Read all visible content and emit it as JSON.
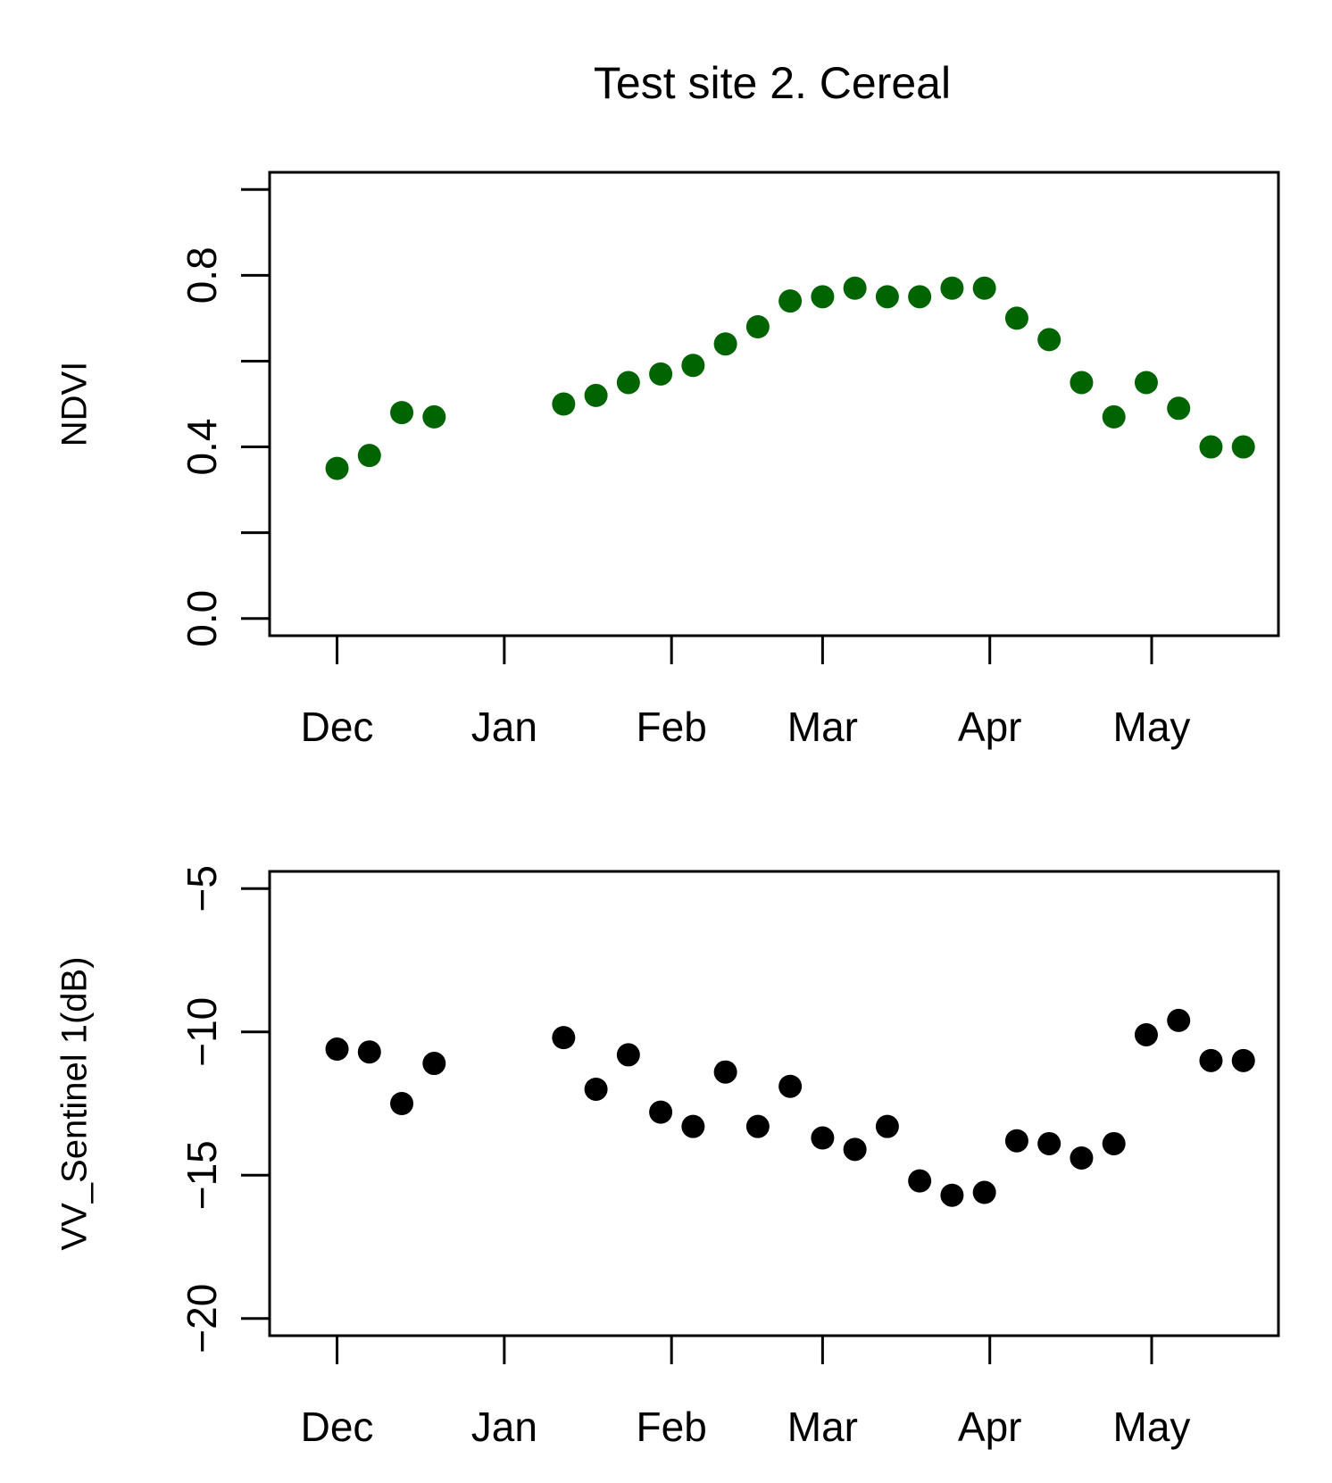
{
  "title": "Test site 2. Cereal",
  "chart_data": [
    {
      "type": "scatter",
      "ylabel": "NDVI",
      "xlabel": "",
      "ylim": [
        -0.04,
        1.04
      ],
      "yticks": [
        0.0,
        0.2,
        0.4,
        0.6,
        0.8,
        1.0
      ],
      "ytick_labels": [
        {
          "value": 0.0,
          "label": "0.0"
        },
        {
          "value": 0.4,
          "label": "0.4"
        },
        {
          "value": 0.8,
          "label": "0.8"
        }
      ],
      "xlim": [
        -12.5,
        174.5
      ],
      "xticks": [
        {
          "day": 0,
          "label": "Dec"
        },
        {
          "day": 31,
          "label": "Jan"
        },
        {
          "day": 62,
          "label": "Feb"
        },
        {
          "day": 90,
          "label": "Mar"
        },
        {
          "day": 121,
          "label": "Apr"
        },
        {
          "day": 151,
          "label": "May"
        }
      ],
      "color": "#006400",
      "series": [
        {
          "name": "NDVI",
          "points": [
            {
              "day": 0,
              "value": 0.35
            },
            {
              "day": 6,
              "value": 0.38
            },
            {
              "day": 12,
              "value": 0.48
            },
            {
              "day": 18,
              "value": 0.47
            },
            {
              "day": 42,
              "value": 0.5
            },
            {
              "day": 48,
              "value": 0.52
            },
            {
              "day": 54,
              "value": 0.55
            },
            {
              "day": 60,
              "value": 0.57
            },
            {
              "day": 66,
              "value": 0.59
            },
            {
              "day": 72,
              "value": 0.64
            },
            {
              "day": 78,
              "value": 0.68
            },
            {
              "day": 84,
              "value": 0.74
            },
            {
              "day": 90,
              "value": 0.75
            },
            {
              "day": 96,
              "value": 0.77
            },
            {
              "day": 102,
              "value": 0.75
            },
            {
              "day": 108,
              "value": 0.75
            },
            {
              "day": 114,
              "value": 0.77
            },
            {
              "day": 120,
              "value": 0.77
            },
            {
              "day": 126,
              "value": 0.7
            },
            {
              "day": 132,
              "value": 0.65
            },
            {
              "day": 138,
              "value": 0.55
            },
            {
              "day": 144,
              "value": 0.47
            },
            {
              "day": 150,
              "value": 0.55
            },
            {
              "day": 156,
              "value": 0.49
            },
            {
              "day": 162,
              "value": 0.4
            },
            {
              "day": 168,
              "value": 0.4
            }
          ]
        }
      ]
    },
    {
      "type": "scatter",
      "ylabel": "VV_Sentinel 1(dB)",
      "xlabel": "",
      "ylim": [
        -20.6,
        -4.4
      ],
      "yticks": [
        -20,
        -15,
        -10,
        -5
      ],
      "ytick_labels": [
        {
          "value": -20,
          "label": "−20"
        },
        {
          "value": -15,
          "label": "−15"
        },
        {
          "value": -10,
          "label": "−10"
        },
        {
          "value": -5,
          "label": "−5"
        }
      ],
      "xlim": [
        -12.5,
        174.5
      ],
      "xticks": [
        {
          "day": 0,
          "label": "Dec"
        },
        {
          "day": 31,
          "label": "Jan"
        },
        {
          "day": 62,
          "label": "Feb"
        },
        {
          "day": 90,
          "label": "Mar"
        },
        {
          "day": 121,
          "label": "Apr"
        },
        {
          "day": 151,
          "label": "May"
        }
      ],
      "color": "#000000",
      "series": [
        {
          "name": "VV",
          "points": [
            {
              "day": 0,
              "value": -10.6
            },
            {
              "day": 6,
              "value": -10.7
            },
            {
              "day": 12,
              "value": -12.5
            },
            {
              "day": 18,
              "value": -11.1
            },
            {
              "day": 42,
              "value": -10.2
            },
            {
              "day": 48,
              "value": -12.0
            },
            {
              "day": 54,
              "value": -10.8
            },
            {
              "day": 60,
              "value": -12.8
            },
            {
              "day": 66,
              "value": -13.3
            },
            {
              "day": 72,
              "value": -11.4
            },
            {
              "day": 78,
              "value": -13.3
            },
            {
              "day": 84,
              "value": -11.9
            },
            {
              "day": 90,
              "value": -13.7
            },
            {
              "day": 96,
              "value": -14.1
            },
            {
              "day": 102,
              "value": -13.3
            },
            {
              "day": 108,
              "value": -15.2
            },
            {
              "day": 114,
              "value": -15.7
            },
            {
              "day": 120,
              "value": -15.6
            },
            {
              "day": 126,
              "value": -13.8
            },
            {
              "day": 132,
              "value": -13.9
            },
            {
              "day": 138,
              "value": -14.4
            },
            {
              "day": 144,
              "value": -13.9
            },
            {
              "day": 150,
              "value": -10.1
            },
            {
              "day": 156,
              "value": -9.6
            },
            {
              "day": 162,
              "value": -11.0
            },
            {
              "day": 168,
              "value": -11.0
            }
          ]
        }
      ]
    }
  ]
}
